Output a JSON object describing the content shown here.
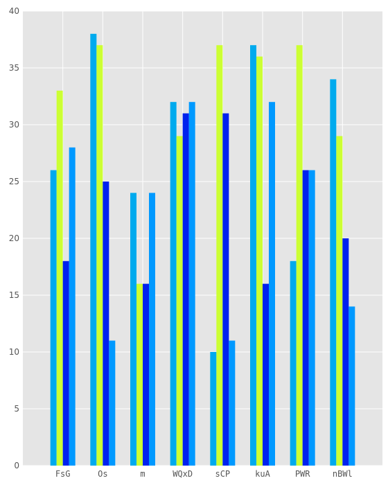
{
  "chart_data": {
    "type": "bar",
    "categories": [
      "FsG",
      "Os",
      "m",
      "WQxD",
      "sCP",
      "kuA",
      "PWR",
      "nBWl"
    ],
    "series": [
      {
        "values": [
          26,
          38,
          24,
          32,
          10,
          37,
          18,
          34
        ],
        "color": "#00aaee"
      },
      {
        "values": [
          33,
          37,
          16,
          29,
          37,
          36,
          37,
          29
        ],
        "color": "#ccff33"
      },
      {
        "values": [
          18,
          25,
          16,
          31,
          31,
          16,
          26,
          20
        ],
        "color": "#0022ee"
      },
      {
        "values": [
          28,
          11,
          24,
          32,
          11,
          32,
          26,
          14
        ],
        "color": "#0099ff"
      }
    ],
    "title": "",
    "xlabel": "",
    "ylabel": "",
    "ylim": [
      0,
      40
    ],
    "yticks": [
      0,
      5,
      10,
      15,
      20,
      25,
      30,
      35,
      40
    ],
    "grid": true,
    "background": "#e5e5e5",
    "grid_color": "#ffffff"
  }
}
